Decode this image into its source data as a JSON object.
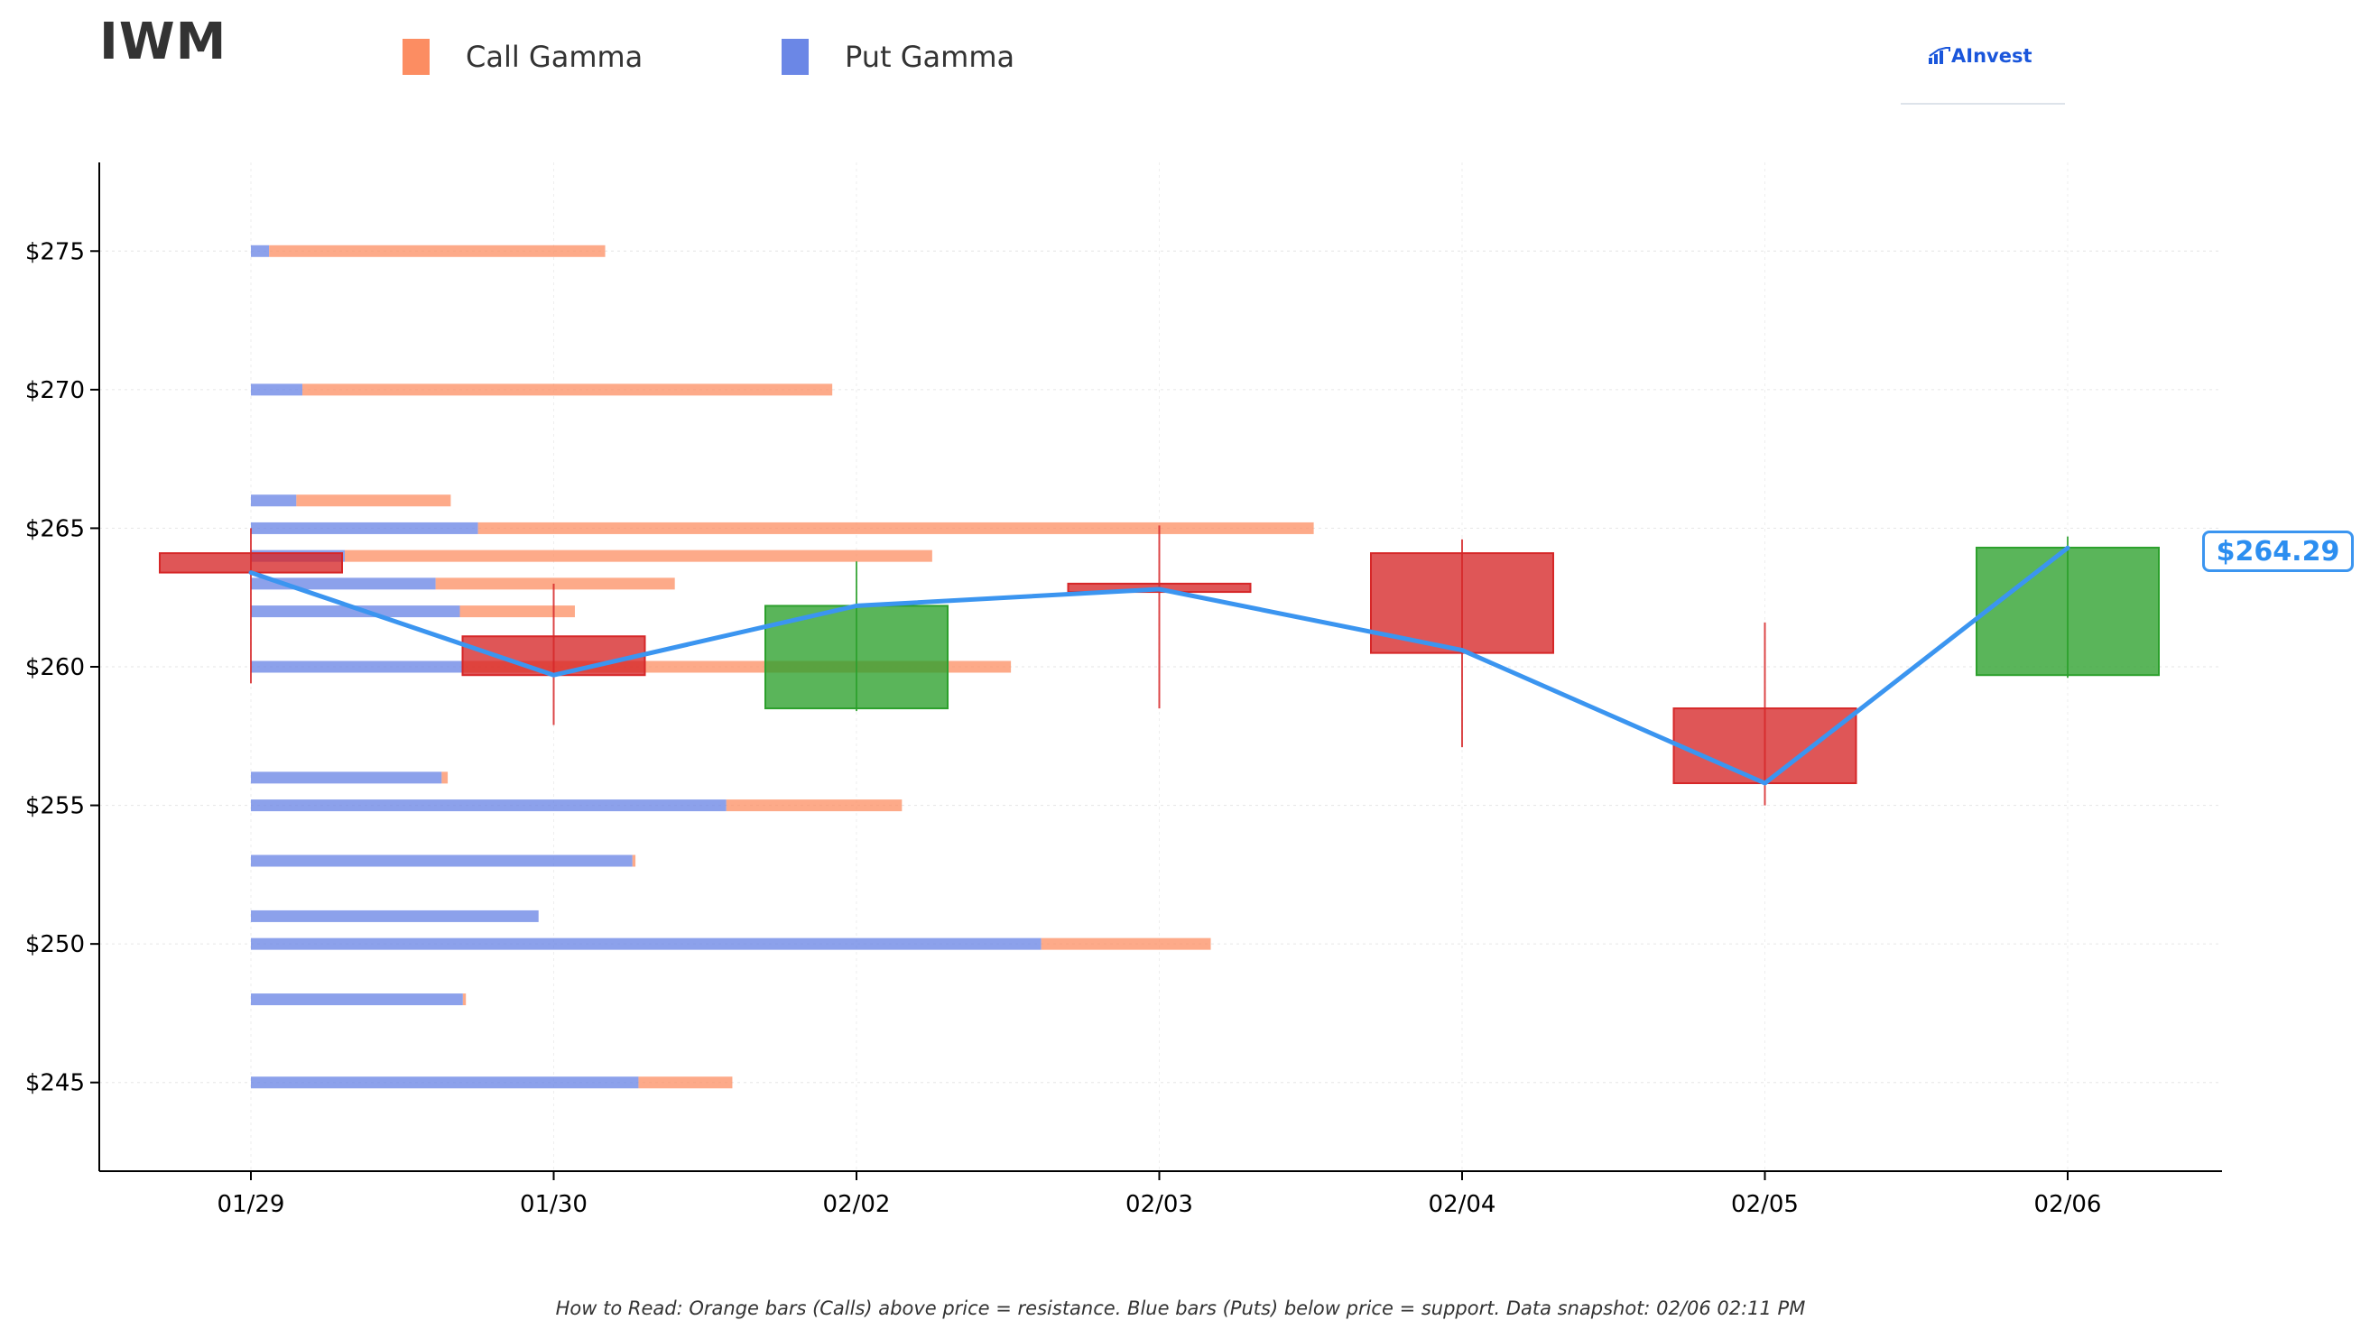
{
  "title": "IWM",
  "legend": [
    {
      "label": "Call Gamma",
      "color": "#fc8d62"
    },
    {
      "label": "Put Gamma",
      "color": "#6b87e6"
    }
  ],
  "brand": {
    "name": "AInvest",
    "icon": "ainvest-logo-icon"
  },
  "current_price_label": "$264.29",
  "footnote": "How to Read: Orange bars (Calls) above price = resistance. Blue bars (Puts) below price = support. Data snapshot: 02/06 02:11 PM",
  "colors": {
    "call": "#fc8d62",
    "put": "#6b87e6",
    "up": "#2ca02c",
    "down": "#d62728",
    "price_line": "#3b95f0"
  },
  "chart_data": {
    "type": "candlestick",
    "categories": [
      "01/29",
      "01/30",
      "02/02",
      "02/03",
      "02/04",
      "02/05",
      "02/06"
    ],
    "ylim": [
      241.8,
      278.2
    ],
    "yticks": [
      245,
      250,
      255,
      260,
      265,
      270,
      275
    ],
    "ytick_labels": [
      "$245",
      "$250",
      "$255",
      "$260",
      "$265",
      "$270",
      "$275"
    ],
    "grid": true,
    "legend_position": "top-left",
    "candles": [
      {
        "date": "01/29",
        "open": 264.1,
        "high": 265.0,
        "low": 259.4,
        "close": 263.4
      },
      {
        "date": "01/30",
        "open": 261.1,
        "high": 263.0,
        "low": 257.9,
        "close": 259.7
      },
      {
        "date": "02/02",
        "open": 258.5,
        "high": 263.8,
        "low": 258.4,
        "close": 262.2
      },
      {
        "date": "02/03",
        "open": 263.0,
        "high": 265.1,
        "low": 258.5,
        "close": 262.7
      },
      {
        "date": "02/04",
        "open": 264.1,
        "high": 264.6,
        "low": 257.1,
        "close": 260.5
      },
      {
        "date": "02/05",
        "open": 258.5,
        "high": 261.6,
        "low": 255.0,
        "close": 255.8
      },
      {
        "date": "02/06",
        "open": 259.7,
        "high": 264.7,
        "low": 259.6,
        "close": 264.3
      }
    ],
    "price_line": {
      "x": [
        "01/29",
        "01/30",
        "02/02",
        "02/03",
        "02/04",
        "02/05",
        "02/06"
      ],
      "y": [
        263.4,
        259.7,
        262.2,
        262.8,
        260.6,
        255.8,
        264.29
      ]
    },
    "gamma": {
      "unit": "category widths",
      "strikes": [
        245,
        248,
        250,
        251,
        253,
        255,
        256,
        260,
        262,
        263,
        264,
        265,
        266,
        270,
        275
      ],
      "put": [
        1.28,
        0.7,
        2.61,
        0.95,
        1.26,
        1.57,
        0.63,
        0.7,
        0.69,
        0.61,
        0.31,
        0.75,
        0.15,
        0.17,
        0.06
      ],
      "call": [
        0.31,
        0.01,
        0.56,
        0.0,
        0.01,
        0.58,
        0.02,
        1.81,
        0.38,
        0.79,
        1.94,
        2.76,
        0.51,
        1.75,
        1.11
      ]
    }
  }
}
